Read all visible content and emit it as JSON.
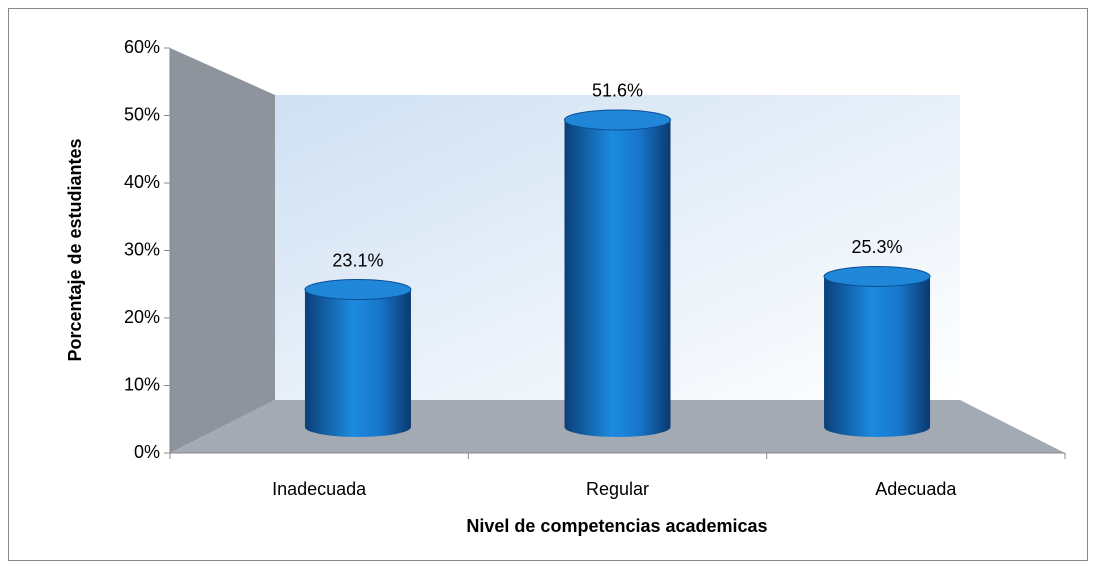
{
  "chart_data": {
    "type": "bar3d",
    "xlabel": "Nivel de competencias academicas",
    "ylabel": "Porcentaje de estudiantes",
    "categories": [
      "Inadecuada",
      "Regular",
      "Adecuada"
    ],
    "values": [
      23.1,
      51.6,
      25.3
    ],
    "value_labels": [
      "23.1%",
      "51.6%",
      "25.3%"
    ],
    "color": "#1a6fc4",
    "ylim": [
      0,
      60
    ],
    "yticks": [
      {
        "value": 0,
        "label": "0%"
      },
      {
        "value": 10,
        "label": "10%"
      },
      {
        "value": 20,
        "label": "20%"
      },
      {
        "value": 30,
        "label": "30%"
      },
      {
        "value": 40,
        "label": "40%"
      },
      {
        "value": 50,
        "label": "50%"
      },
      {
        "value": 60,
        "label": "60%"
      }
    ]
  }
}
